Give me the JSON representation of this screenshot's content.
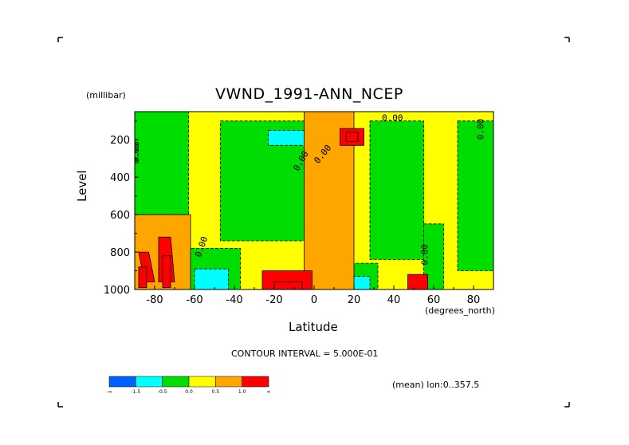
{
  "chart_data": {
    "type": "heatmap",
    "title": "VWND_1991-ANN_NCEP",
    "xlabel": "Latitude",
    "x_unit": "(degrees_north)",
    "ylabel": "Level",
    "y_unit": "(millibar)",
    "xlim": [
      -90,
      90
    ],
    "ylim": [
      50,
      1000
    ],
    "y_reversed": true,
    "x_ticks": [
      -80,
      -60,
      -40,
      -20,
      0,
      20,
      40,
      60,
      80
    ],
    "y_ticks": [
      200,
      400,
      600,
      800,
      1000
    ],
    "x_tick_labels": [
      "-80",
      "-60",
      "-40",
      "-20",
      "0",
      "20",
      "40",
      "60",
      "80"
    ],
    "y_tick_labels": [
      "200",
      "400",
      "600",
      "800",
      "1000"
    ],
    "contour_interval_text": "CONTOUR INTERVAL = 5.000E-01",
    "mean_text": "(mean) lon:0..357.5",
    "contour_labels": [
      "0.00",
      "0.00",
      "0.00",
      "0.00",
      "0.00",
      "0.00",
      "0.00",
      "0.00"
    ],
    "colorbar": {
      "colors": [
        "#0060ff",
        "#00ffff",
        "#00dd00",
        "#ffff00",
        "#ffa500",
        "#ff0000"
      ],
      "labels": [
        "-∞",
        "-1.5",
        "-0.5",
        "0.0",
        "0.5",
        "1.0",
        "∞"
      ]
    },
    "regions": [
      {
        "category": "positive",
        "level": 1,
        "x": [
          -5,
          20,
          20,
          -5
        ],
        "y": [
          50,
          50,
          1000,
          1000
        ]
      },
      {
        "category": "positive",
        "level": 1,
        "x": [
          -90,
          -62,
          -62,
          -90
        ],
        "y": [
          600,
          600,
          1000,
          1000
        ]
      },
      {
        "category": "positive",
        "level": 2,
        "x": [
          -88,
          -83,
          -80,
          -85
        ],
        "y": [
          800,
          800,
          960,
          960
        ]
      },
      {
        "category": "positive",
        "level": 2,
        "x": [
          -78,
          -72,
          -70,
          -78
        ],
        "y": [
          720,
          720,
          960,
          960
        ]
      },
      {
        "category": "positive",
        "level": 3,
        "x": [
          -88,
          -84,
          -84,
          -88
        ],
        "y": [
          880,
          880,
          990,
          990
        ]
      },
      {
        "category": "positive",
        "level": 3,
        "x": [
          -76,
          -72,
          -72,
          -76
        ],
        "y": [
          820,
          820,
          990,
          990
        ]
      },
      {
        "category": "positive",
        "level": 2,
        "x": [
          -26,
          -1,
          -1,
          -26
        ],
        "y": [
          900,
          900,
          1000,
          1000
        ]
      },
      {
        "category": "positive",
        "level": 3,
        "x": [
          -20,
          -6,
          -6,
          -20
        ],
        "y": [
          960,
          960,
          1000,
          1000
        ]
      },
      {
        "category": "positive",
        "level": 2,
        "x": [
          13,
          25,
          25,
          13
        ],
        "y": [
          140,
          140,
          230,
          230
        ]
      },
      {
        "category": "positive",
        "level": 3,
        "x": [
          16,
          22,
          22,
          16
        ],
        "y": [
          160,
          160,
          210,
          210
        ]
      },
      {
        "category": "positive",
        "level": 2,
        "x": [
          47,
          57,
          57,
          47
        ],
        "y": [
          920,
          920,
          1000,
          1000
        ]
      },
      {
        "category": "negative",
        "level": -1,
        "x": [
          -90,
          -63,
          -63,
          -90
        ],
        "y": [
          50,
          50,
          600,
          600
        ]
      },
      {
        "category": "negative",
        "level": -1,
        "x": [
          -47,
          -5,
          -5,
          -47
        ],
        "y": [
          100,
          100,
          740,
          740
        ]
      },
      {
        "category": "negative",
        "level": -2,
        "x": [
          -23,
          7,
          7,
          -23
        ],
        "y": [
          150,
          150,
          230,
          230
        ]
      },
      {
        "category": "negative",
        "level": -1,
        "x": [
          28,
          55,
          55,
          28
        ],
        "y": [
          100,
          100,
          840,
          840
        ]
      },
      {
        "category": "negative",
        "level": -1,
        "x": [
          72,
          90,
          90,
          72
        ],
        "y": [
          100,
          100,
          900,
          900
        ]
      },
      {
        "category": "negative",
        "level": -1,
        "x": [
          -64,
          -37,
          -37,
          -64
        ],
        "y": [
          780,
          780,
          1000,
          1000
        ]
      },
      {
        "category": "negative",
        "level": -2,
        "x": [
          -60,
          -43,
          -43,
          -60
        ],
        "y": [
          890,
          890,
          1000,
          1000
        ]
      },
      {
        "category": "negative",
        "level": -1,
        "x": [
          9,
          32,
          32,
          9
        ],
        "y": [
          860,
          860,
          1000,
          1000
        ]
      },
      {
        "category": "negative",
        "level": -2,
        "x": [
          12,
          28,
          28,
          12
        ],
        "y": [
          930,
          930,
          1000,
          1000
        ]
      },
      {
        "category": "negative",
        "level": -1,
        "x": [
          55,
          65,
          65,
          55
        ],
        "y": [
          650,
          650,
          1000,
          1000
        ]
      }
    ]
  }
}
